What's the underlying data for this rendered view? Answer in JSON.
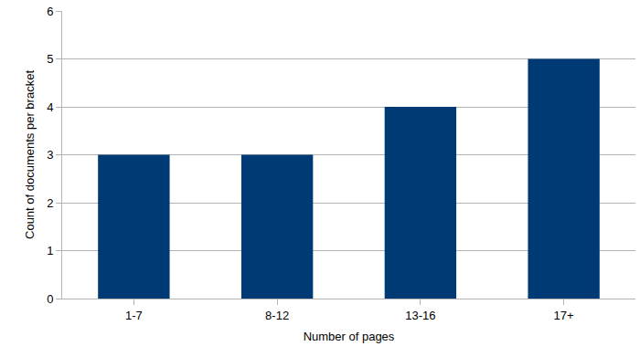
{
  "chart_data": {
    "type": "bar",
    "x_label": "Number of pages",
    "y_label": "Count of documents per bracket",
    "categories": [
      "1-7",
      "8-12",
      "13-16",
      "17+"
    ],
    "values": [
      3,
      3,
      4,
      5
    ],
    "color": "#003a75",
    "ylim": [
      0,
      6
    ],
    "yticks": [
      0,
      1,
      2,
      3,
      4,
      5,
      6
    ],
    "grid": true
  }
}
